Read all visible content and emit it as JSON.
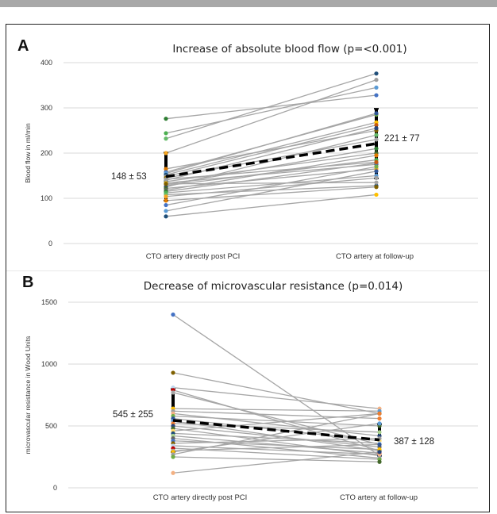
{
  "chart_data": [
    {
      "type": "line",
      "panel": "A",
      "title": "Increase of absolute blood flow (p=<0.001)",
      "ylabel": "Blood flow in ml/min",
      "categories": [
        "CTO artery directly post PCI",
        "CTO artery at follow-up"
      ],
      "ylim": [
        0,
        400
      ],
      "yticks": [
        0,
        100,
        200,
        300,
        400
      ],
      "mean": [
        148,
        221
      ],
      "sd": [
        53,
        77
      ],
      "annotations": [
        "148 ± 53",
        "221 ± 77"
      ],
      "pairs": [
        [
          276,
          328
        ],
        [
          244,
          345
        ],
        [
          232,
          376
        ],
        [
          200,
          362
        ],
        [
          165,
          250
        ],
        [
          158,
          285
        ],
        [
          155,
          288
        ],
        [
          152,
          268
        ],
        [
          148,
          262
        ],
        [
          145,
          230
        ],
        [
          140,
          255
        ],
        [
          137,
          200
        ],
        [
          134,
          175
        ],
        [
          130,
          210
        ],
        [
          128,
          185
        ],
        [
          125,
          240
        ],
        [
          122,
          165
        ],
        [
          118,
          195
        ],
        [
          115,
          178
        ],
        [
          112,
          150
        ],
        [
          108,
          128
        ],
        [
          104,
          145
        ],
        [
          95,
          125
        ],
        [
          85,
          170
        ],
        [
          72,
          160
        ],
        [
          60,
          108
        ],
        [
          142,
          180
        ],
        [
          132,
          135
        ]
      ],
      "colors": [
        "#2e7d32",
        "#4caf50",
        "#66bb6a",
        "#f5a623",
        "#e07b00",
        "#4472c4",
        "#5b9bd5",
        "#1f4e79",
        "#9e9e9e",
        "#7f6000",
        "#70ad47",
        "#2f5597",
        "#ffc000",
        "#c55a11",
        "#a5a5a5",
        "#264478",
        "#43682b",
        "#636363"
      ],
      "grid": true,
      "legend": "none"
    },
    {
      "type": "line",
      "panel": "B",
      "title": "Decrease of microvascular resistance (p=0.014)",
      "ylabel": "microvascular resistance in Wood Units",
      "categories": [
        "CTO artery directly post PCI",
        "CTO artery at follow-up"
      ],
      "ylim": [
        0,
        1500
      ],
      "yticks": [
        0,
        500,
        1000,
        1500
      ],
      "mean": [
        545,
        387
      ],
      "sd": [
        255,
        128
      ],
      "annotations": [
        "545 ± 255",
        "387 ± 128"
      ],
      "pairs": [
        [
          1400,
          260
        ],
        [
          930,
          600
        ],
        [
          810,
          640
        ],
        [
          790,
          300
        ],
        [
          770,
          350
        ],
        [
          640,
          620
        ],
        [
          620,
          560
        ],
        [
          600,
          420
        ],
        [
          580,
          500
        ],
        [
          560,
          380
        ],
        [
          540,
          300
        ],
        [
          520,
          450
        ],
        [
          500,
          330
        ],
        [
          480,
          260
        ],
        [
          460,
          600
        ],
        [
          440,
          360
        ],
        [
          420,
          280
        ],
        [
          400,
          240
        ],
        [
          380,
          310
        ],
        [
          360,
          400
        ],
        [
          340,
          270
        ],
        [
          320,
          230
        ],
        [
          300,
          350
        ],
        [
          290,
          520
        ],
        [
          270,
          600
        ],
        [
          120,
          290
        ],
        [
          250,
          210
        ]
      ],
      "colors": [
        "#4472c4",
        "#7f6000",
        "#bdd7ee",
        "#c00000",
        "#a5a5a5",
        "#ffc000",
        "#9e9e9e",
        "#f4b183",
        "#70ad47",
        "#2f5597",
        "#5b9bd5",
        "#ed7d31",
        "#264478",
        "#43682b",
        "#ffd966",
        "#1f4e79",
        "#a9d18e",
        "#636363"
      ],
      "grid": true,
      "legend": "none"
    }
  ]
}
